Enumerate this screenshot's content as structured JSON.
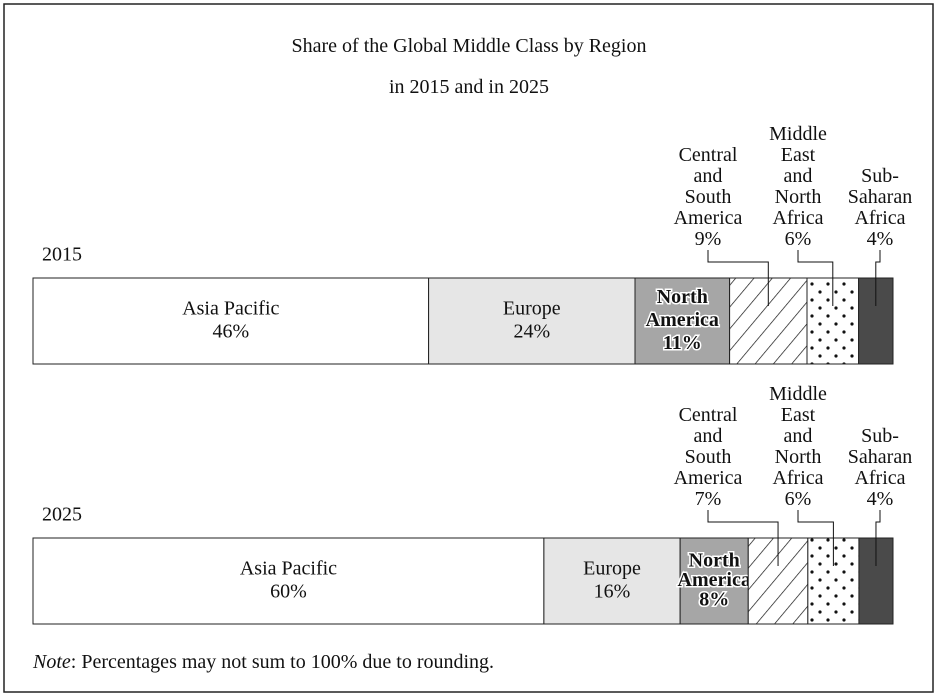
{
  "chart_data": {
    "type": "stacked-bar-100",
    "title": "Share of the Global Middle Class by Region\nin 2015 and in 2025",
    "categories": [
      "2015",
      "2025"
    ],
    "series": [
      {
        "name": "Asia Pacific",
        "color": "#ffffff",
        "values": [
          46,
          60
        ],
        "value_labels": [
          "46%",
          "60%"
        ],
        "label_position": "inside"
      },
      {
        "name": "Europe",
        "color": "#e6e6e6",
        "values": [
          24,
          16
        ],
        "value_labels": [
          "24%",
          "16%"
        ],
        "label_position": "inside"
      },
      {
        "name": "North\nAmerica",
        "color": "#a6a6a6",
        "values": [
          11,
          8
        ],
        "value_labels": [
          "11%",
          "8%"
        ],
        "label_position": "inside"
      },
      {
        "name": "Central\nand\nSouth\nAmerica",
        "color": "#ffffff",
        "pattern": "hatch",
        "values": [
          9,
          7
        ],
        "value_labels": [
          "9%",
          "7%"
        ],
        "label_position": "outside"
      },
      {
        "name": "Middle\nEast\nand\nNorth\nAfrica",
        "color": "#ffffff",
        "pattern": "dots",
        "values": [
          6,
          6
        ],
        "value_labels": [
          "6%",
          "6%"
        ],
        "label_position": "outside"
      },
      {
        "name": "Sub-\nSaharan\nAfrica",
        "color": "#4a4a4a",
        "values": [
          4,
          4
        ],
        "value_labels": [
          "4%",
          "4%"
        ],
        "label_position": "outside"
      }
    ],
    "note_label": "Note",
    "note": ": Percentages may not sum to 100% due to rounding."
  }
}
